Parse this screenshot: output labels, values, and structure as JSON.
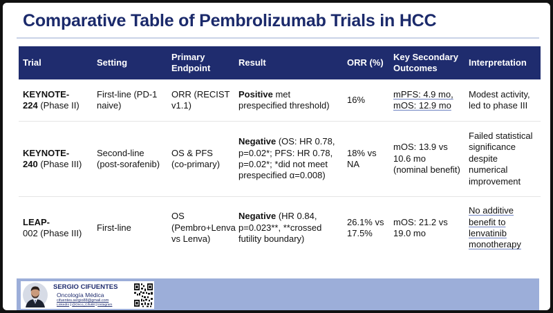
{
  "slide": {
    "title": "Comparative Table of Pembrolizumab Trials in HCC"
  },
  "table": {
    "headers": {
      "trial": "Trial",
      "setting": "Setting",
      "endpoint_line1": "Primary",
      "endpoint_line2": "Endpoint",
      "result": "Result",
      "orr": "ORR (%)",
      "secondary_line1": "Key Secondary",
      "secondary_line2": "Outcomes",
      "interpretation": "Interpretation"
    },
    "rows": [
      {
        "trial_name": "KEYNOTE-",
        "trial_name_2": "224",
        "trial_phase": " (Phase II)",
        "setting": "First-line (PD-1 naive)",
        "endpoint": "ORR (RECIST v1.1)",
        "result_tag": "Positive",
        "result_text": " met prespecified threshold)",
        "orr": "16%",
        "secondary_1": "mPFS: 4.9 mo,",
        "secondary_2": "mOS: 12.9 mo",
        "interpretation": "Modest activity, led to phase III"
      },
      {
        "trial_name": "KEYNOTE-",
        "trial_name_2": "240",
        "trial_phase": " (Phase III)",
        "setting": "Second-line (post-sorafenib)",
        "endpoint": "OS & PFS (co-primary)",
        "result_tag": "Negative",
        "result_text": " (OS: HR 0.78, p=0.02*; PFS: HR 0.78, p=0.02*; *did not meet prespecified α=0.008)",
        "orr": "18% vs NA",
        "secondary_1": "mOS: 13.9 vs 10.6 mo (nominal benefit)",
        "secondary_2": "",
        "interpretation": "Failed statistical significance despite numerical improvement"
      },
      {
        "trial_name": "LEAP-",
        "trial_name_2": "",
        "trial_phase": "002 (Phase III)",
        "setting": "First-line",
        "endpoint": "OS (Pembro+Lenva vs Lenva)",
        "result_tag": "Negative",
        "result_text": " (HR 0.84, p=0.023**, **crossed futility boundary)",
        "orr": "26.1% vs 17.5%",
        "secondary_1": "mOS: 21.2 vs 19.0 mo",
        "secondary_2": "",
        "interpretation": "No additive benefit to lenvatinib monotherapy"
      }
    ]
  },
  "footer": {
    "name": "SERGIO CIFUENTES",
    "role": "Oncología Médica",
    "email": "cifuentes.sergio88@gmail.com",
    "link_linkedin": "LinkedIn",
    "link_twitter": "@Onco_Cifu88",
    "link_instagram": "Instagram",
    "separator": " | "
  },
  "colors": {
    "title": "#1b2a6b",
    "header_bg": "#1f2c6e",
    "footer_bg": "#9caed9"
  },
  "icons": {
    "avatar": "profile-photo",
    "qr": "qr-code"
  }
}
